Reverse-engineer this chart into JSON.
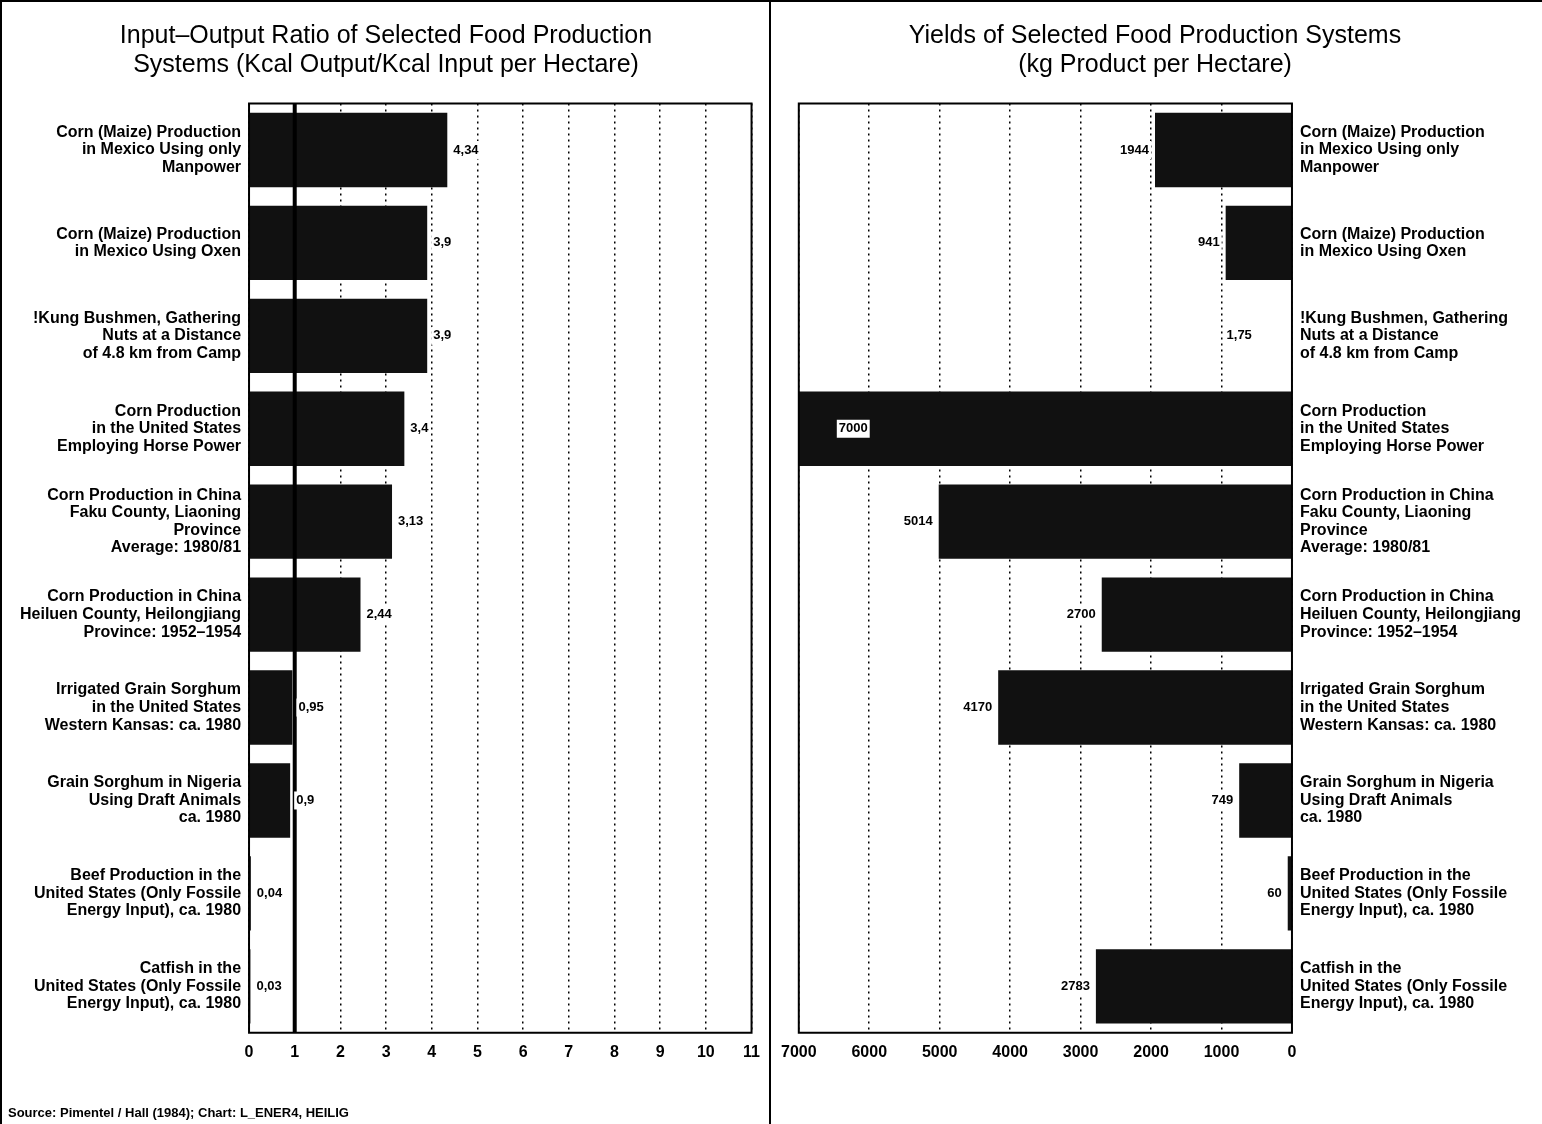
{
  "chart_data": [
    {
      "type": "bar",
      "orientation": "horizontal",
      "title": "Input–Output Ratio of Selected Food Production\nSystems (Kcal Output/Kcal Input per Hectare)",
      "categories": [
        "Corn (Maize) Production\nin Mexico Using only\nManpower",
        "Corn (Maize) Production\nin Mexico Using Oxen",
        "!Kung Bushmen, Gathering\nNuts at a Distance\nof 4.8 km from Camp",
        "Corn Production\nin the United States\nEmploying Horse Power",
        "Corn Production in China\nFaku County, Liaoning\nProvince\nAverage: 1980/81",
        "Corn Production in China\nHeiluen County, Heilongjiang\nProvince: 1952–1954",
        "Irrigated Grain Sorghum\nin the United States\nWestern Kansas: ca. 1980",
        "Grain Sorghum in Nigeria\nUsing Draft Animals\nca. 1980",
        "Beef Production in the\nUnited States (Only Fossile\nEnergy Input), ca. 1980",
        "Catfish in the\nUnited States (Only Fossile\nEnergy Input), ca. 1980"
      ],
      "values": [
        4.34,
        3.9,
        3.9,
        3.4,
        3.13,
        2.44,
        0.95,
        0.9,
        0.04,
        0.03
      ],
      "value_labels": [
        "4,34",
        "3,9",
        "3,9",
        "3,4",
        "3,13",
        "2,44",
        "0,95",
        "0,9",
        "0,04",
        "0,03"
      ],
      "color": "#111111",
      "xlim": [
        0,
        11
      ],
      "xticks": [
        0,
        1,
        2,
        3,
        4,
        5,
        6,
        7,
        8,
        9,
        10,
        11
      ],
      "grid": "x",
      "legend": false,
      "ref_lines": [
        {
          "axis": "x",
          "value": 1,
          "color": "#000000"
        }
      ],
      "annotations": [
        "Source: Pimentel / Hall (1984); Chart: L_ENER4, HEILIG"
      ]
    },
    {
      "type": "bar",
      "orientation": "horizontal",
      "title": "Yields of Selected Food Production Systems\n(kg Product per Hectare)",
      "categories": [
        "Corn (Maize) Production\nin Mexico Using only\nManpower",
        "Corn (Maize) Production\nin Mexico Using Oxen",
        "!Kung Bushmen, Gathering\nNuts at a Distance\nof 4.8 km from Camp",
        "Corn Production\nin the United States\nEmploying Horse Power",
        "Corn Production in China\nFaku County, Liaoning\nProvince\nAverage: 1980/81",
        "Corn Production in China\nHeiluen County, Heilongjiang\nProvince: 1952–1954",
        "Irrigated Grain Sorghum\nin the United States\nWestern Kansas: ca. 1980",
        "Grain Sorghum in Nigeria\nUsing Draft Animals\nca. 1980",
        "Beef Production in the\nUnited States (Only Fossile\nEnergy Input), ca. 1980",
        "Catfish in the\nUnited States (Only Fossile\nEnergy Input), ca. 1980"
      ],
      "values": [
        1944,
        941,
        1.75,
        7000,
        5014,
        2700,
        4170,
        749,
        60,
        2783
      ],
      "value_labels": [
        "1944",
        "941",
        "1,75",
        "7000",
        "5014",
        "2700",
        "4170",
        "749",
        "60",
        "2783"
      ],
      "color": "#111111",
      "xlim": [
        7000,
        0
      ],
      "xticks": [
        7000,
        6000,
        5000,
        4000,
        3000,
        2000,
        1000,
        0
      ],
      "grid": "x",
      "legend": false
    }
  ]
}
